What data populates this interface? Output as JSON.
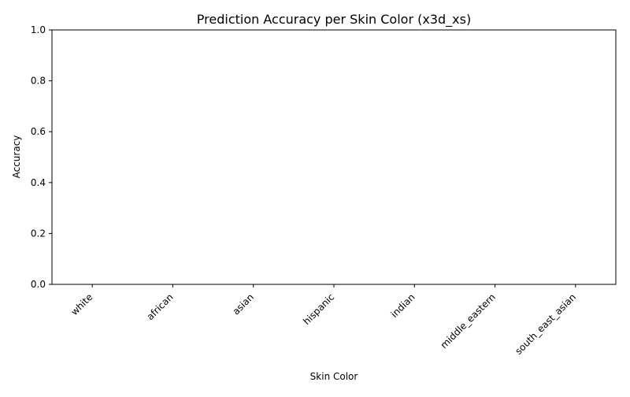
{
  "chart_data": {
    "type": "bar",
    "title": "Prediction Accuracy per Skin Color (x3d_xs)",
    "xlabel": "Skin Color",
    "ylabel": "Accuracy",
    "categories": [
      "white",
      "african",
      "asian",
      "hispanic",
      "indian",
      "middle_eastern",
      "south_east_asian"
    ],
    "values": [
      0,
      0,
      0,
      0,
      0,
      0,
      0
    ],
    "ylim": [
      0,
      1
    ],
    "yticks": [
      "0.0",
      "0.2",
      "0.4",
      "0.6",
      "0.8",
      "1.0"
    ],
    "grid": false,
    "legend": "none",
    "bar_color": "#1f77b4"
  }
}
